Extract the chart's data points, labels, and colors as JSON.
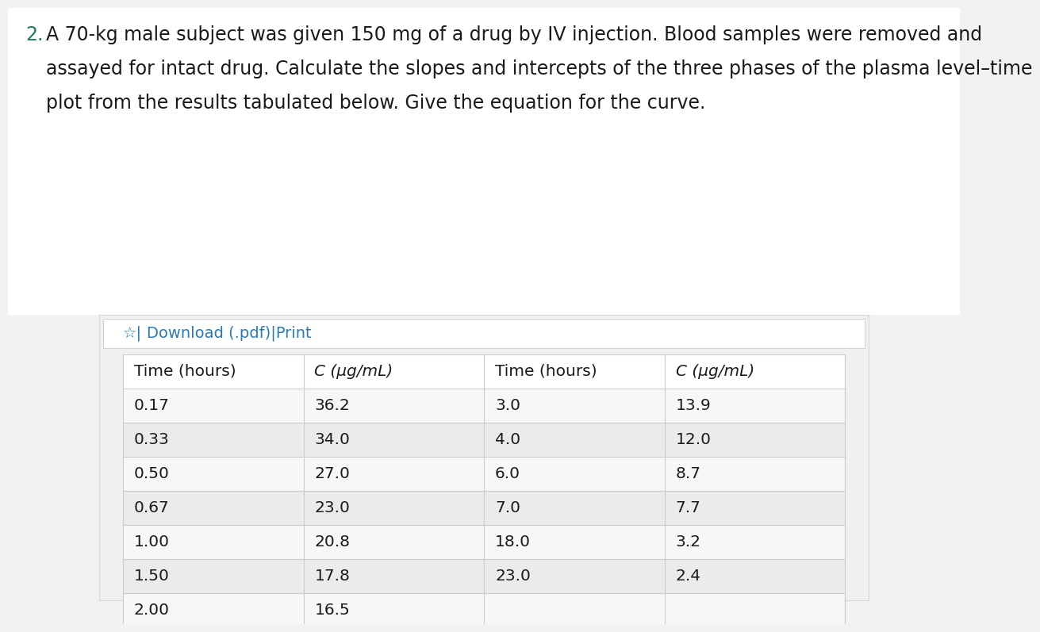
{
  "title_number": "2.",
  "title_lines": [
    "A 70-kg male subject was given 150 mg of a drug by IV injection. Blood samples were removed and",
    "assayed for intact drug. Calculate the slopes and intercepts of the three phases of the plasma level–time",
    "plot from the results tabulated below. Give the equation for the curve."
  ],
  "download_text": "☆|Download (.pdf)|Print",
  "col1_header": "Time (hours)",
  "col2_header": "C (μg/mL)",
  "col3_header": "Time (hours)",
  "col4_header": "C (μg/mL)",
  "left_time": [
    "0.17",
    "0.33",
    "0.50",
    "0.67",
    "1.00",
    "1.50",
    "2.00"
  ],
  "left_conc": [
    "36.2",
    "34.0",
    "27.0",
    "23.0",
    "20.8",
    "17.8",
    "16.5"
  ],
  "right_time": [
    "3.0",
    "4.0",
    "6.0",
    "7.0",
    "18.0",
    "23.0",
    ""
  ],
  "right_conc": [
    "13.9",
    "12.0",
    "8.7",
    "7.7",
    "3.2",
    "2.4",
    ""
  ],
  "bg_page": "#f2f2f2",
  "bg_white": "#ffffff",
  "bg_gray_box": "#f0f0f0",
  "bg_row_odd": "#f7f7f7",
  "bg_row_even": "#ebebeb",
  "border_color": "#cccccc",
  "text_color": "#1a1a1a",
  "number_color": "#1a7a5e",
  "link_color": "#2a7ab5",
  "title_fontsize": 17,
  "table_fontsize": 14.5,
  "download_fontsize": 14
}
